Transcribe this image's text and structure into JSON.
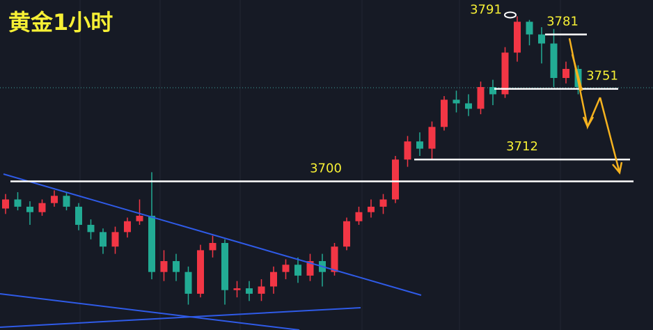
{
  "chart_data": {
    "type": "candlestick",
    "title": "黄金1小时",
    "ylim": [
      3618,
      3800
    ],
    "up_color": "#f23645",
    "down_color": "#22ab94",
    "open": [
      3685,
      3690,
      3686,
      3683,
      3688,
      3692,
      3686,
      3676,
      3672,
      3664,
      3672,
      3678,
      3681,
      3650,
      3656,
      3650,
      3638,
      3662,
      3666,
      3640,
      3641,
      3638,
      3642,
      3650,
      3654,
      3648,
      3656,
      3650,
      3664,
      3678,
      3683,
      3686,
      3690,
      3712,
      3722,
      3718,
      3730,
      3745,
      3743,
      3740,
      3752,
      3748,
      3771,
      3788,
      3781,
      3776,
      3757,
      3762
    ],
    "high": [
      3693,
      3694,
      3689,
      3690,
      3695,
      3694,
      3688,
      3679,
      3674,
      3675,
      3680,
      3690,
      3705,
      3662,
      3660,
      3653,
      3665,
      3670,
      3668,
      3645,
      3645,
      3646,
      3653,
      3657,
      3658,
      3660,
      3660,
      3666,
      3680,
      3686,
      3690,
      3693,
      3714,
      3725,
      3727,
      3733,
      3747,
      3750,
      3748,
      3755,
      3756,
      3774,
      3791,
      3789,
      3785,
      3784,
      3766,
      3764
    ],
    "low": [
      3682,
      3684,
      3676,
      3681,
      3686,
      3684,
      3673,
      3668,
      3660,
      3660,
      3669,
      3676,
      3646,
      3645,
      3645,
      3632,
      3636,
      3658,
      3632,
      3636,
      3634,
      3634,
      3638,
      3646,
      3644,
      3645,
      3642,
      3648,
      3662,
      3676,
      3680,
      3682,
      3688,
      3708,
      3714,
      3712,
      3728,
      3738,
      3736,
      3737,
      3742,
      3746,
      3766,
      3775,
      3765,
      3752,
      3754,
      3748
    ],
    "close": [
      3690,
      3686,
      3683,
      3688,
      3692,
      3686,
      3676,
      3672,
      3664,
      3672,
      3678,
      3681,
      3650,
      3656,
      3650,
      3638,
      3662,
      3666,
      3640,
      3641,
      3638,
      3642,
      3650,
      3654,
      3648,
      3656,
      3650,
      3664,
      3678,
      3683,
      3686,
      3690,
      3712,
      3722,
      3718,
      3730,
      3745,
      3743,
      3740,
      3752,
      3748,
      3771,
      3788,
      3781,
      3776,
      3757,
      3762,
      3752
    ],
    "levels": [
      3700,
      3712,
      3751,
      3781
    ],
    "high_label": 3791
  }
}
